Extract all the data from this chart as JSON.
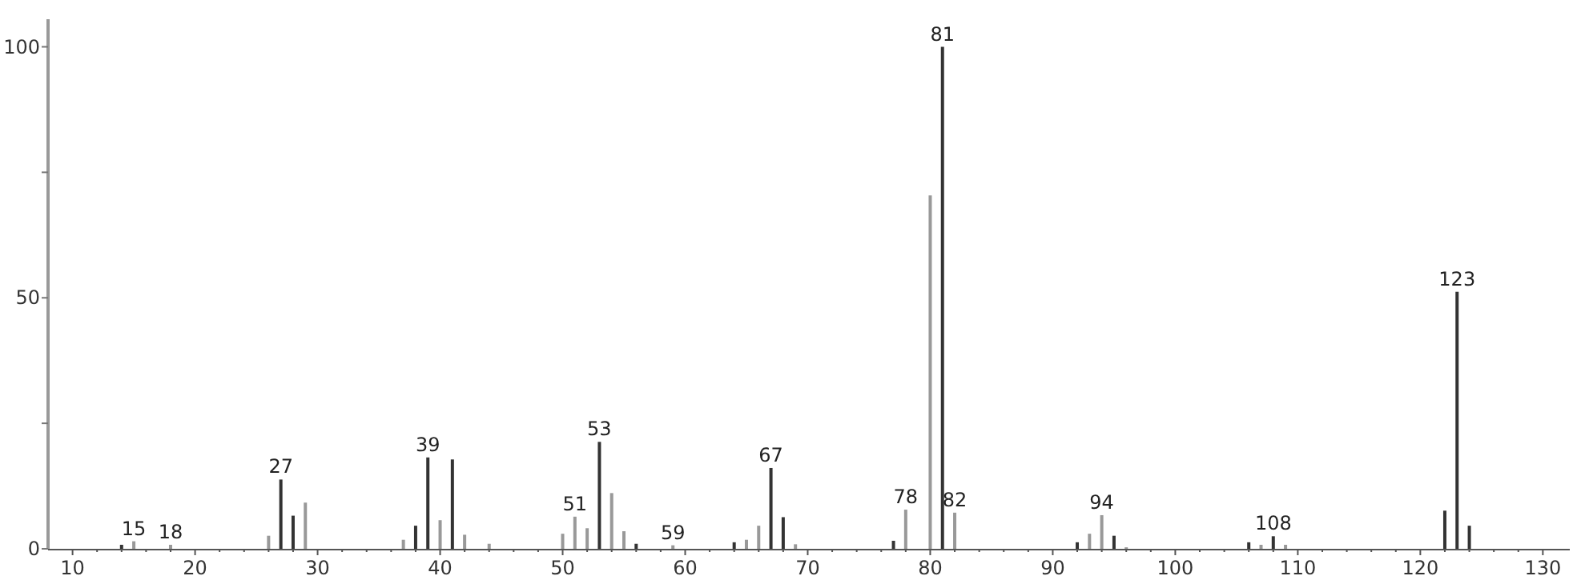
{
  "chart_data": {
    "type": "bar",
    "x": [
      14,
      15,
      18,
      26,
      27,
      28,
      29,
      37,
      38,
      39,
      40,
      41,
      42,
      44,
      50,
      51,
      52,
      53,
      54,
      55,
      56,
      59,
      64,
      65,
      66,
      67,
      68,
      69,
      77,
      78,
      80,
      81,
      82,
      92,
      93,
      94,
      95,
      96,
      106,
      107,
      108,
      109,
      122,
      123,
      124
    ],
    "values": [
      0.8,
      1.5,
      0.8,
      2.6,
      13.8,
      6.6,
      9.2,
      1.8,
      4.6,
      18.2,
      5.7,
      17.8,
      2.8,
      1.0,
      3.0,
      6.4,
      4.1,
      21.3,
      11.1,
      3.5,
      1.0,
      0.7,
      1.3,
      1.8,
      4.6,
      16.1,
      6.3,
      0.9,
      1.6,
      7.8,
      70.4,
      100,
      7.2,
      1.3,
      3.0,
      6.7,
      2.6,
      0.3,
      1.3,
      0.8,
      2.5,
      0.8,
      7.6,
      51.2,
      4.6
    ],
    "colors": [
      "#333333",
      "#999999",
      "#999999",
      "#999999",
      "#333333",
      "#333333",
      "#999999",
      "#999999",
      "#333333",
      "#333333",
      "#999999",
      "#333333",
      "#999999",
      "#999999",
      "#999999",
      "#999999",
      "#999999",
      "#333333",
      "#999999",
      "#999999",
      "#333333",
      "#999999",
      "#333333",
      "#999999",
      "#999999",
      "#333333",
      "#333333",
      "#999999",
      "#333333",
      "#999999",
      "#999999",
      "#333333",
      "#999999",
      "#333333",
      "#999999",
      "#999999",
      "#333333",
      "#999999",
      "#333333",
      "#999999",
      "#333333",
      "#999999",
      "#333333",
      "#333333",
      "#333333"
    ],
    "xlim": [
      8,
      132.2
    ],
    "ylim": [
      0,
      105.5
    ],
    "xticks": [
      10,
      {
        "value": 12,
        "label": null
      },
      {
        "value": 14,
        "label": null
      },
      {
        "value": 16,
        "label": null
      },
      {
        "value": 18,
        "label": null
      },
      20,
      {
        "value": 22,
        "label": null
      },
      {
        "value": 24,
        "label": null
      },
      {
        "value": 26,
        "label": null
      },
      {
        "value": 28,
        "label": null
      },
      30,
      {
        "value": 32,
        "label": null
      },
      {
        "value": 34,
        "label": null
      },
      {
        "value": 36,
        "label": null
      },
      {
        "value": 38,
        "label": null
      },
      40,
      {
        "value": 42,
        "label": null
      },
      {
        "value": 44,
        "label": null
      },
      {
        "value": 46,
        "label": null
      },
      {
        "value": 48,
        "label": null
      },
      50,
      {
        "value": 52,
        "label": null
      },
      {
        "value": 54,
        "label": null
      },
      {
        "value": 56,
        "label": null
      },
      {
        "value": 58,
        "label": null
      },
      60,
      {
        "value": 62,
        "label": null
      },
      {
        "value": 64,
        "label": null
      },
      {
        "value": 66,
        "label": null
      },
      {
        "value": 68,
        "label": null
      },
      70,
      {
        "value": 72,
        "label": null
      },
      {
        "value": 74,
        "label": null
      },
      {
        "value": 76,
        "label": null
      },
      {
        "value": 78,
        "label": null
      },
      80,
      {
        "value": 82,
        "label": null
      },
      {
        "value": 84,
        "label": null
      },
      {
        "value": 86,
        "label": null
      },
      {
        "value": 88,
        "label": null
      },
      90,
      {
        "value": 92,
        "label": null
      },
      {
        "value": 94,
        "label": null
      },
      {
        "value": 96,
        "label": null
      },
      {
        "value": 98,
        "label": null
      },
      100,
      {
        "value": 102,
        "label": null
      },
      {
        "value": 104,
        "label": null
      },
      {
        "value": 106,
        "label": null
      },
      {
        "value": 108,
        "label": null
      },
      110,
      {
        "value": 112,
        "label": null
      },
      {
        "value": 114,
        "label": null
      },
      {
        "value": 116,
        "label": null
      },
      {
        "value": 118,
        "label": null
      },
      120,
      {
        "value": 122,
        "label": null
      },
      {
        "value": 124,
        "label": null
      },
      {
        "value": 126,
        "label": null
      },
      {
        "value": 128,
        "label": null
      },
      130
    ],
    "yticks": [
      0,
      {
        "value": 25,
        "label": null
      },
      50,
      {
        "value": 75,
        "label": null
      },
      100
    ],
    "annotations": [
      {
        "text": "15",
        "x": 15,
        "y": 1.5
      },
      {
        "text": "18",
        "x": 18,
        "y": 0.8
      },
      {
        "text": "27",
        "x": 27,
        "y": 13.8
      },
      {
        "text": "39",
        "x": 39,
        "y": 18.2
      },
      {
        "text": "51",
        "x": 51,
        "y": 6.4
      },
      {
        "text": "53",
        "x": 53,
        "y": 21.3
      },
      {
        "text": "59",
        "x": 59,
        "y": 0.7
      },
      {
        "text": "67",
        "x": 67,
        "y": 16.1
      },
      {
        "text": "78",
        "x": 78,
        "y": 7.8
      },
      {
        "text": "81",
        "x": 81,
        "y": 100
      },
      {
        "text": "82",
        "x": 82,
        "y": 7.2
      },
      {
        "text": "94",
        "x": 94,
        "y": 6.7
      },
      {
        "text": "108",
        "x": 108,
        "y": 2.5
      },
      {
        "text": "123",
        "x": 123,
        "y": 51.2
      }
    ],
    "grid": false
  }
}
